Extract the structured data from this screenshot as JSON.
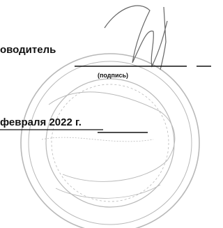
{
  "document": {
    "role_label": "оводитель",
    "signature_caption": "(подпись)",
    "date": "февраля 2022 г."
  }
}
